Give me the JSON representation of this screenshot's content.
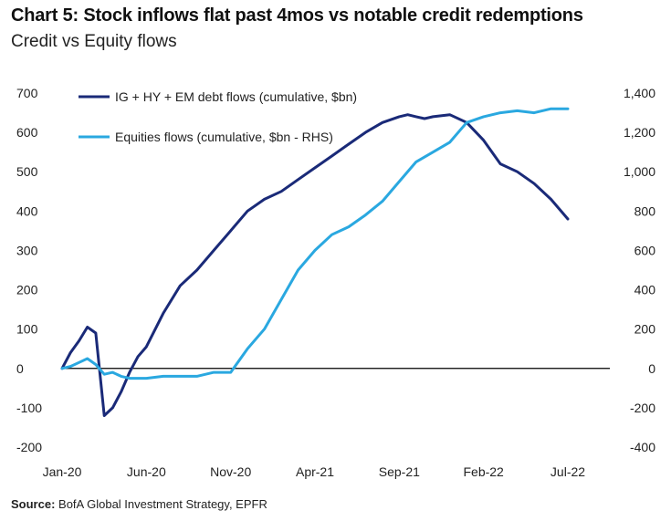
{
  "title": "Chart 5: Stock inflows flat past 4mos vs notable credit redemptions",
  "subtitle": "Credit vs Equity flows",
  "source_label": "Source:",
  "source_text": "BofA Global Investment Strategy, EPFR",
  "colors": {
    "credit": "#1a2a78",
    "equity": "#2aa8e0",
    "zero_line": "#000000"
  },
  "chart_data": {
    "type": "line",
    "x_ticks": [
      "Jan-20",
      "Jun-20",
      "Nov-20",
      "Apr-21",
      "Sep-21",
      "Feb-22",
      "Jul-22"
    ],
    "x_tick_index": [
      0,
      5,
      10,
      15,
      20,
      25,
      30
    ],
    "x_start": "Jan-20",
    "x_end": "Jul-22",
    "y_left": {
      "ticks": [
        "700",
        "600",
        "500",
        "400",
        "300",
        "200",
        "100",
        "0",
        "-100",
        "-200"
      ],
      "range": [
        -200,
        700
      ]
    },
    "y_right": {
      "ticks": [
        "1,400",
        "1,200",
        "1,000",
        "800",
        "600",
        "400",
        "200",
        "0",
        "-200",
        "-400"
      ],
      "range": [
        -400,
        1400
      ]
    },
    "legend_placement": "top-left",
    "grid": false,
    "series": [
      {
        "name": "IG + HY + EM debt flows (cumulative, $bn)",
        "axis": "left",
        "x": [
          0,
          0.5,
          1,
          1.5,
          2,
          2.5,
          3,
          3.5,
          4,
          4.5,
          5,
          6,
          7,
          8,
          9,
          10,
          11,
          12,
          13,
          14,
          15,
          16,
          17,
          18,
          19,
          20,
          20.5,
          21,
          21.5,
          22,
          23,
          24,
          25,
          26,
          27,
          28,
          29,
          30
        ],
        "values": [
          0,
          40,
          70,
          105,
          90,
          -120,
          -100,
          -60,
          -10,
          30,
          55,
          140,
          210,
          250,
          300,
          350,
          400,
          430,
          450,
          480,
          510,
          540,
          570,
          600,
          625,
          640,
          645,
          640,
          635,
          640,
          645,
          625,
          580,
          520,
          500,
          470,
          430,
          380
        ]
      },
      {
        "name": "Equities flows (cumulative, $bn - RHS)",
        "axis": "right",
        "x": [
          0,
          0.5,
          1,
          1.5,
          2,
          2.5,
          3,
          3.5,
          4,
          5,
          6,
          7,
          8,
          9,
          10,
          11,
          12,
          13,
          14,
          15,
          16,
          17,
          18,
          19,
          20,
          21,
          22,
          23,
          24,
          25,
          26,
          27,
          28,
          29,
          30
        ],
        "values": [
          0,
          10,
          30,
          50,
          20,
          -30,
          -20,
          -40,
          -50,
          -50,
          -40,
          -40,
          -40,
          -20,
          -20,
          100,
          200,
          350,
          500,
          600,
          680,
          720,
          780,
          850,
          950,
          1050,
          1100,
          1150,
          1250,
          1280,
          1300,
          1310,
          1300,
          1320,
          1320
        ]
      }
    ]
  }
}
